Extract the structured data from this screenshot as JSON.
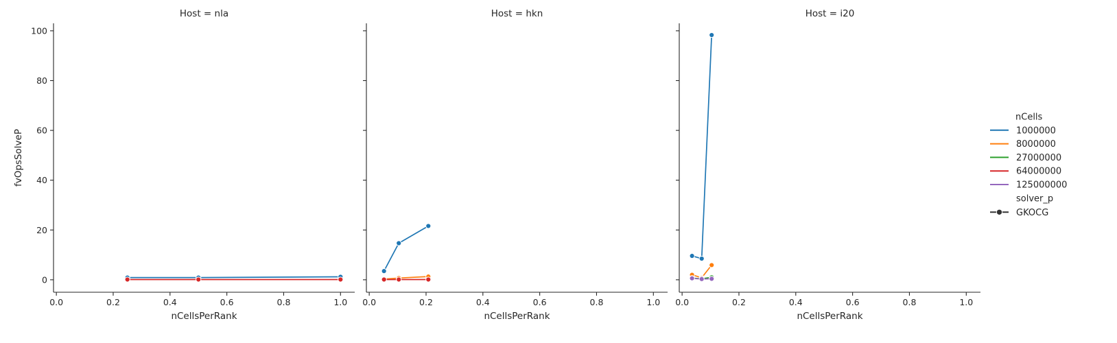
{
  "chart_data": {
    "type": "line",
    "xlabel": "nCellsPerRank",
    "ylabel": "fvOpsSolveP",
    "xlim": [
      -0.01,
      1.05
    ],
    "ylim": [
      -5,
      103
    ],
    "xticks": [
      "0.0",
      "0.2",
      "0.4",
      "0.6",
      "0.8",
      "1.0"
    ],
    "yticks": [
      "0",
      "20",
      "40",
      "60",
      "80",
      "100"
    ],
    "grid": false,
    "legend_position": "right",
    "legend": {
      "hue_title": "nCells",
      "hue_entries": [
        {
          "label": "1000000",
          "color": "#1f77b4"
        },
        {
          "label": "8000000",
          "color": "#ff7f0e"
        },
        {
          "label": "27000000",
          "color": "#2ca02c"
        },
        {
          "label": "64000000",
          "color": "#d62728"
        },
        {
          "label": "125000000",
          "color": "#9467bd"
        }
      ],
      "style_title": "solver_p",
      "style_entries": [
        {
          "label": "GKOCG",
          "color": "#333333"
        }
      ]
    },
    "panels": [
      {
        "title": "Host = nla",
        "series": [
          {
            "name": "1000000",
            "color": "#1f77b4",
            "x": [
              0.25,
              0.5,
              1.0
            ],
            "y": [
              0.9,
              0.9,
              1.2
            ]
          },
          {
            "name": "64000000",
            "color": "#d62728",
            "x": [
              0.25,
              0.5,
              1.0
            ],
            "y": [
              0.1,
              0.1,
              0.1
            ]
          }
        ]
      },
      {
        "title": "Host = hkn",
        "series": [
          {
            "name": "1000000",
            "color": "#1f77b4",
            "x": [
              0.052,
              0.104,
              0.208
            ],
            "y": [
              3.5,
              14.7,
              21.6
            ]
          },
          {
            "name": "8000000",
            "color": "#ff7f0e",
            "x": [
              0.052,
              0.104,
              0.208
            ],
            "y": [
              0.3,
              0.7,
              1.3
            ]
          },
          {
            "name": "64000000",
            "color": "#d62728",
            "x": [
              0.052,
              0.104,
              0.208
            ],
            "y": [
              0.1,
              0.1,
              0.1
            ]
          }
        ]
      },
      {
        "title": "Host = i20",
        "series": [
          {
            "name": "1000000",
            "color": "#1f77b4",
            "x": [
              0.035,
              0.069,
              0.104
            ],
            "y": [
              9.6,
              8.5,
              98.3
            ]
          },
          {
            "name": "8000000",
            "color": "#ff7f0e",
            "x": [
              0.035,
              0.069,
              0.104
            ],
            "y": [
              2.0,
              0.8,
              5.9
            ]
          },
          {
            "name": "27000000",
            "color": "#2ca02c",
            "x": [
              0.035,
              0.069,
              0.104
            ],
            "y": [
              0.7,
              0.4,
              1.0
            ]
          },
          {
            "name": "125000000",
            "color": "#9467bd",
            "x": [
              0.035,
              0.069,
              0.104
            ],
            "y": [
              0.6,
              0.3,
              0.4
            ]
          }
        ]
      }
    ]
  }
}
